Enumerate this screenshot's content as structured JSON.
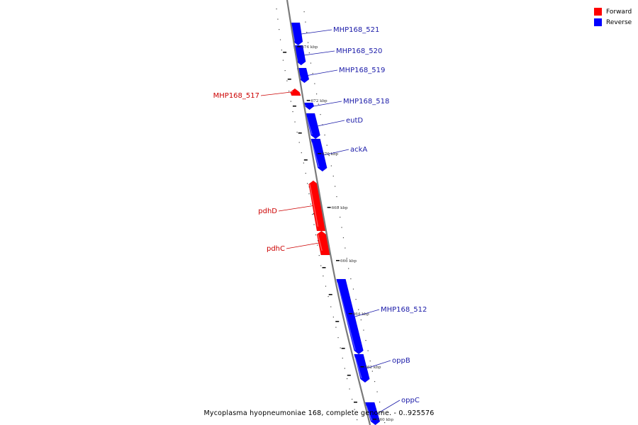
{
  "colors": {
    "forward": "#ff0000",
    "reverse": "#0000ff",
    "backbone": "#7a7a7a",
    "forward_label": "#cc0000",
    "reverse_label": "#1a1aa8"
  },
  "legend": [
    {
      "label": "Forward",
      "strand": "forward"
    },
    {
      "label": "Reverse",
      "strand": "reverse"
    }
  ],
  "caption": "Mycoplasma hyopneumoniae 168, complete genome. - 0..925576",
  "scale_labels": [
    "674 kbp",
    "672 kbp",
    "670 kbp",
    "668 kbp",
    "666 kbp",
    "664 kbp",
    "662 kbp",
    "660 kbp"
  ],
  "genes": [
    {
      "name": "MHP168_521",
      "strand": "reverse"
    },
    {
      "name": "MHP168_520",
      "strand": "reverse"
    },
    {
      "name": "MHP168_519",
      "strand": "reverse"
    },
    {
      "name": "MHP168_517",
      "strand": "forward"
    },
    {
      "name": "MHP168_518",
      "strand": "reverse"
    },
    {
      "name": "eutD",
      "strand": "reverse"
    },
    {
      "name": "ackA",
      "strand": "reverse"
    },
    {
      "name": "pdhD",
      "strand": "forward"
    },
    {
      "name": "pdhC",
      "strand": "forward"
    },
    {
      "name": "MHP168_512",
      "strand": "reverse"
    },
    {
      "name": "oppB",
      "strand": "reverse"
    },
    {
      "name": "oppC",
      "strand": "reverse"
    }
  ]
}
